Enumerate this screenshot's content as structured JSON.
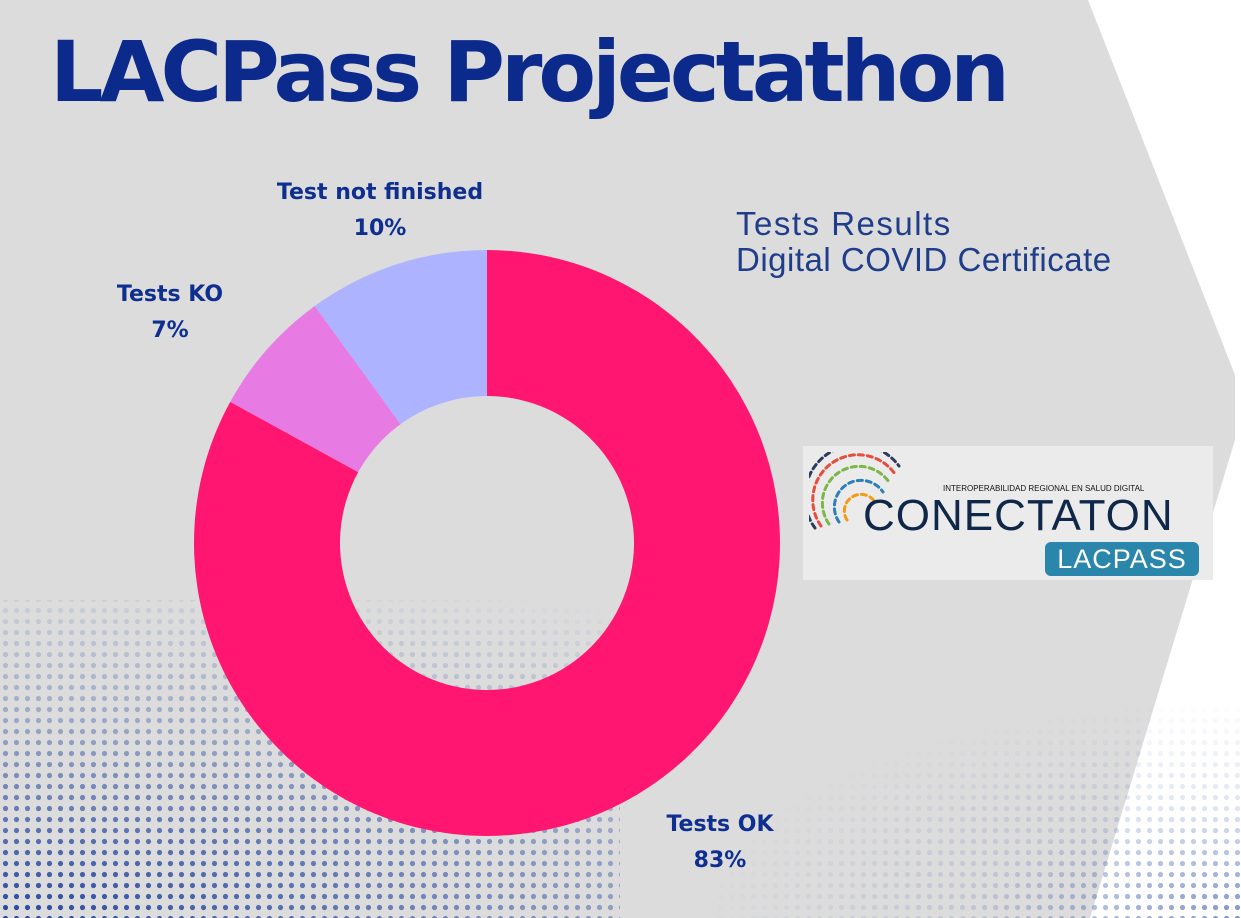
{
  "title": "LACPass Projectathon",
  "subtitle": [
    "Tests Results",
    "Digital COVID Certificate"
  ],
  "logo": {
    "tagline": "INTEROPERABILIDAD REGIONAL EN SALUD DIGITAL",
    "wordmark": "CONECTATON",
    "badge": "LACPASS",
    "icon": "fingerprint-arcs-icon"
  },
  "colors": {
    "background": "#dcdcdc",
    "title": "#0c2a8c",
    "tests_ok": "#ff1670",
    "tests_ko": "#e87be3",
    "test_not_finished": "#adb3fe",
    "dots": "#1c3f9e"
  },
  "chart_data": {
    "type": "pie",
    "donut": true,
    "title": "",
    "legend": "none",
    "slices": [
      {
        "name": "Tests OK",
        "label": "Tests OK",
        "value": 83,
        "value_label": "83%",
        "color": "#ff1670"
      },
      {
        "name": "Tests KO",
        "label": "Tests KO",
        "value": 7,
        "value_label": "7%",
        "color": "#e87be3"
      },
      {
        "name": "Test not finished",
        "label": "Test not finished",
        "value": 10,
        "value_label": "10%",
        "color": "#adb3fe"
      }
    ]
  }
}
